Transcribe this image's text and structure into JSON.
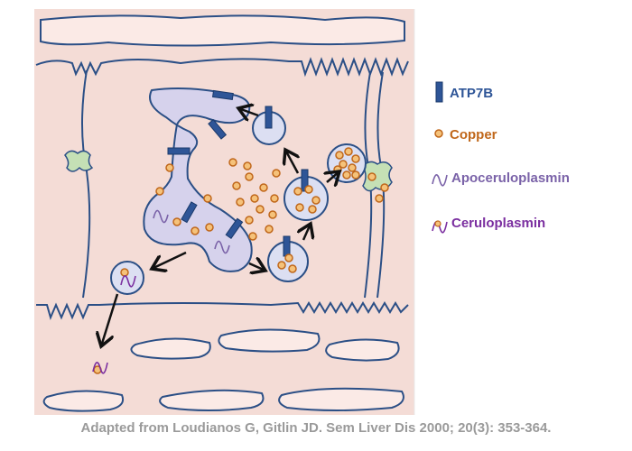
{
  "legend": [
    {
      "id": "atp7b",
      "label": "ATP7B",
      "color": "#2e5597"
    },
    {
      "id": "copper",
      "label": "Copper",
      "color": "#c0671a"
    },
    {
      "id": "apoceruloplasmin",
      "label": "Apoceruloplasmin",
      "color": "#7a62a8"
    },
    {
      "id": "ceruloplasmin",
      "label": "Ceruloplasmin",
      "color": "#7b2fa0"
    }
  ],
  "citation": "Adapted from Loudianos G, Gitlin JD. Sem Liver Dis 2000; 20(3): 353-364.",
  "colors": {
    "background": "#f4dcd6",
    "membrane": "#2b4f86",
    "golgi_fill": "#d6d2ec",
    "vesicle_fill": "#dcdff2",
    "copper_fill": "#f5c27a",
    "copper_stroke": "#c0671a",
    "arrow": "#111111",
    "channel_fill": "#c5e0b5",
    "citation_text": "#9a9a9a"
  }
}
